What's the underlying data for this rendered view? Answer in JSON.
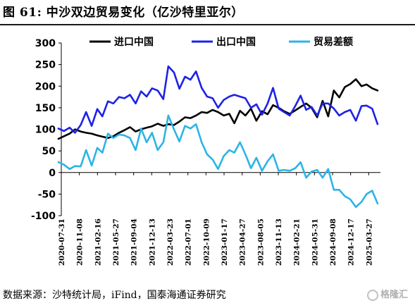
{
  "header": {
    "title": "图 61:  中沙双边贸易变化（亿沙特里亚尔）"
  },
  "footer": {
    "source": "数据来源：沙特统计局，iFind，国泰海通证券研究",
    "watermark": "格隆汇"
  },
  "colors": {
    "import": "#000000",
    "export": "#1e22e6",
    "balance": "#2cb4e6"
  },
  "chart_data": {
    "type": "line",
    "title": "图 61:  中沙双边贸易变化（亿沙特里亚尔）",
    "ylim": [
      -100,
      300
    ],
    "yticks": [
      -100,
      -50,
      0,
      50,
      100,
      150,
      200,
      250,
      300
    ],
    "legend_position": "top",
    "grid": false,
    "x_tick_labels": [
      "2020-07-31",
      "2020-11-08",
      "2021-02-16",
      "2021-05-27",
      "2021-09-04",
      "2021-12-13",
      "2022-03-23",
      "2022-07-01",
      "2022-10-09",
      "2023-01-17",
      "2023-04-27",
      "2023-08-05",
      "2023-11-13",
      "2024-02-21",
      "2024-05-31",
      "2024-09-08",
      "2024-12-17",
      "2025-03-27"
    ],
    "x": [
      "2020-07",
      "2020-08",
      "2020-09",
      "2020-10",
      "2020-11",
      "2020-12",
      "2021-01",
      "2021-02",
      "2021-03",
      "2021-04",
      "2021-05",
      "2021-06",
      "2021-07",
      "2021-08",
      "2021-09",
      "2021-10",
      "2021-11",
      "2021-12",
      "2022-01",
      "2022-02",
      "2022-03",
      "2022-04",
      "2022-05",
      "2022-06",
      "2022-07",
      "2022-08",
      "2022-09",
      "2022-10",
      "2022-11",
      "2022-12",
      "2023-01",
      "2023-02",
      "2023-03",
      "2023-04",
      "2023-05",
      "2023-06",
      "2023-07",
      "2023-08",
      "2023-09",
      "2023-10",
      "2023-11",
      "2023-12",
      "2024-01",
      "2024-02",
      "2024-03",
      "2024-04",
      "2024-05",
      "2024-06",
      "2024-07",
      "2024-08",
      "2024-09",
      "2024-10",
      "2024-11",
      "2024-12",
      "2025-01",
      "2025-02",
      "2025-03",
      "2025-04",
      "2025-05"
    ],
    "series": [
      {
        "name": "进口中国",
        "values": [
          78,
          84,
          90,
          100,
          95,
          92,
          90,
          86,
          83,
          80,
          84,
          92,
          98,
          105,
          95,
          100,
          104,
          107,
          113,
          108,
          112,
          110,
          118,
          128,
          126,
          132,
          140,
          138,
          145,
          140,
          132,
          136,
          114,
          143,
          132,
          148,
          120,
          142,
          135,
          156,
          150,
          142,
          136,
          144,
          152,
          160,
          150,
          128,
          166,
          130,
          190,
          174,
          198,
          205,
          216,
          200,
          204,
          195,
          190
        ]
      },
      {
        "name": "出口中国",
        "values": [
          102,
          96,
          104,
          92,
          110,
          140,
          108,
          147,
          130,
          165,
          160,
          175,
          172,
          180,
          160,
          188,
          176,
          195,
          190,
          170,
          246,
          232,
          194,
          222,
          215,
          234,
          196,
          176,
          172,
          150,
          168,
          176,
          180,
          176,
          172,
          150,
          158,
          134,
          160,
          196,
          148,
          140,
          132,
          154,
          178,
          145,
          152,
          132,
          160,
          160,
          148,
          132,
          140,
          145,
          120,
          154,
          155,
          148,
          112
        ]
      },
      {
        "name": "贸易差额",
        "values": [
          24,
          18,
          8,
          15,
          14,
          52,
          16,
          57,
          46,
          90,
          80,
          88,
          86,
          80,
          52,
          102,
          70,
          92,
          52,
          70,
          132,
          100,
          72,
          108,
          102,
          112,
          70,
          42,
          30,
          8,
          38,
          52,
          46,
          70,
          42,
          10,
          34,
          4,
          26,
          42,
          4,
          6,
          4,
          10,
          24,
          -12,
          2,
          6,
          -12,
          8,
          -40,
          -40,
          -55,
          -62,
          -80,
          -68,
          -50,
          -42,
          -72
        ]
      }
    ]
  }
}
